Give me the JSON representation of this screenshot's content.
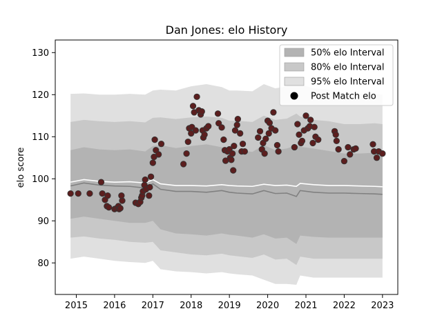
{
  "chart_data": {
    "type": "scatter",
    "title": "Dan Jones: elo History",
    "xlabel": "",
    "ylabel": "elo score",
    "xlim": [
      2014.45,
      2023.4
    ],
    "ylim": [
      72.5,
      133
    ],
    "x_ticks": [
      2015,
      2016,
      2017,
      2018,
      2019,
      2020,
      2021,
      2022,
      2023
    ],
    "x_tick_labels": [
      "2015",
      "2016",
      "2017",
      "2018",
      "2019",
      "2020",
      "2021",
      "2022",
      "2023"
    ],
    "y_ticks": [
      80,
      90,
      100,
      110,
      120,
      130
    ],
    "y_tick_labels": [
      "80",
      "90",
      "100",
      "110",
      "120",
      "130"
    ],
    "grid": false,
    "legend_position": "top-right",
    "legend": [
      {
        "label": "50% elo Interval",
        "kind": "band",
        "color": "#b3b3b3"
      },
      {
        "label": "80% elo Interval",
        "kind": "band",
        "color": "#c8c8c8"
      },
      {
        "label": "95% elo Interval",
        "kind": "band",
        "color": "#e0e0e0"
      },
      {
        "label": "Post Match elo",
        "kind": "marker",
        "color": "#000000"
      }
    ],
    "colors": {
      "band50": "#b3b3b3",
      "band80": "#c8c8c8",
      "band95": "#e0e0e0",
      "median_line": "#808080",
      "mean_line": "#ffffff",
      "point_fill": "#5c1e1e",
      "point_edge": "#333333"
    },
    "bands": {
      "x": [
        2014.85,
        2015.2,
        2015.6,
        2016.0,
        2016.4,
        2016.8,
        2017.0,
        2017.2,
        2017.6,
        2018.0,
        2018.4,
        2018.8,
        2019.0,
        2019.2,
        2019.6,
        2019.9,
        2020.2,
        2020.5,
        2020.75,
        2020.85,
        2021.2,
        2021.6,
        2022.0,
        2022.4,
        2022.8,
        2023.0
      ],
      "p95_hi": [
        120.2,
        120.3,
        120.0,
        120.0,
        120.2,
        120.0,
        121.0,
        121.2,
        121.0,
        122.0,
        122.5,
        121.8,
        121.0,
        121.0,
        120.8,
        122.5,
        121.5,
        122.0,
        124.0,
        122.5,
        121.5,
        121.2,
        120.2,
        120.2,
        120.2,
        120.0
      ],
      "p80_hi": [
        113.5,
        114.0,
        113.7,
        113.5,
        113.7,
        113.4,
        114.5,
        114.6,
        114.2,
        114.6,
        114.8,
        114.5,
        113.8,
        113.8,
        113.5,
        115.0,
        114.0,
        114.3,
        115.5,
        114.8,
        114.0,
        113.7,
        113.0,
        113.0,
        113.2,
        113.0
      ],
      "p50_hi": [
        106.8,
        107.5,
        107.0,
        106.8,
        107.0,
        106.5,
        107.8,
        108.0,
        107.3,
        107.8,
        108.2,
        107.5,
        106.8,
        106.8,
        106.4,
        108.0,
        106.8,
        107.2,
        108.0,
        107.6,
        107.2,
        106.6,
        106.0,
        106.0,
        106.2,
        106.0
      ],
      "median": [
        98.3,
        99.0,
        98.5,
        98.3,
        98.2,
        97.8,
        98.8,
        97.5,
        97.0,
        97.0,
        96.8,
        97.2,
        96.8,
        96.6,
        96.4,
        97.2,
        96.5,
        96.6,
        95.8,
        97.2,
        96.8,
        96.6,
        96.6,
        96.5,
        96.4,
        96.3
      ],
      "mean": [
        99.2,
        99.8,
        99.4,
        99.2,
        99.3,
        99.0,
        99.8,
        98.8,
        98.4,
        98.4,
        98.3,
        98.6,
        98.4,
        98.3,
        98.2,
        98.7,
        98.4,
        98.5,
        98.2,
        98.9,
        98.6,
        98.4,
        98.4,
        98.3,
        98.2,
        98.1
      ],
      "p50_lo": [
        90.5,
        91.0,
        90.5,
        90.0,
        89.5,
        89.5,
        90.0,
        88.0,
        87.0,
        86.8,
        86.5,
        87.0,
        86.7,
        86.5,
        86.0,
        86.8,
        85.8,
        86.0,
        84.5,
        86.5,
        86.2,
        86.0,
        86.0,
        86.0,
        86.0,
        86.0
      ],
      "p80_lo": [
        86.0,
        86.3,
        85.8,
        85.5,
        85.0,
        84.8,
        85.0,
        83.0,
        82.5,
        82.0,
        81.8,
        82.2,
        81.8,
        81.6,
        81.2,
        82.0,
        80.8,
        81.0,
        79.5,
        81.5,
        81.0,
        81.0,
        81.0,
        81.0,
        81.0,
        81.0
      ],
      "p95_lo": [
        81.0,
        81.5,
        81.0,
        80.5,
        80.2,
        80.0,
        80.5,
        78.5,
        78.0,
        77.8,
        77.5,
        77.8,
        77.5,
        77.3,
        77.0,
        76.0,
        75.0,
        75.0,
        74.8,
        77.0,
        76.5,
        76.5,
        76.5,
        76.5,
        76.5,
        76.5
      ]
    },
    "series": [
      {
        "name": "Post Match elo",
        "points": [
          [
            2014.85,
            96.5
          ],
          [
            2015.05,
            96.5
          ],
          [
            2015.35,
            96.5
          ],
          [
            2015.65,
            99.2
          ],
          [
            2015.68,
            96.5
          ],
          [
            2015.75,
            95.0
          ],
          [
            2015.8,
            93.5
          ],
          [
            2015.85,
            93.2
          ],
          [
            2015.82,
            96.0
          ],
          [
            2016.0,
            92.8
          ],
          [
            2016.05,
            93.0
          ],
          [
            2016.1,
            93.5
          ],
          [
            2016.12,
            92.8
          ],
          [
            2016.15,
            93.0
          ],
          [
            2016.2,
            94.8
          ],
          [
            2016.18,
            96.0
          ],
          [
            2016.55,
            94.3
          ],
          [
            2016.62,
            94.0
          ],
          [
            2016.67,
            94.5
          ],
          [
            2016.7,
            95.5
          ],
          [
            2016.72,
            96.0
          ],
          [
            2016.74,
            97.0
          ],
          [
            2016.78,
            98.5
          ],
          [
            2016.8,
            99.8
          ],
          [
            2016.82,
            97.5
          ],
          [
            2016.9,
            96.0
          ],
          [
            2016.95,
            100.5
          ],
          [
            2016.92,
            98.0
          ],
          [
            2017.0,
            103.8
          ],
          [
            2017.03,
            105.2
          ],
          [
            2017.05,
            109.3
          ],
          [
            2017.08,
            106.8
          ],
          [
            2017.15,
            105.8
          ],
          [
            2017.22,
            108.3
          ],
          [
            2017.8,
            103.5
          ],
          [
            2017.88,
            106.0
          ],
          [
            2017.92,
            108.8
          ],
          [
            2017.95,
            112.0
          ],
          [
            2018.0,
            110.8
          ],
          [
            2018.02,
            112.3
          ],
          [
            2018.05,
            117.3
          ],
          [
            2018.08,
            115.8
          ],
          [
            2018.12,
            111.5
          ],
          [
            2018.15,
            119.5
          ],
          [
            2018.2,
            116.3
          ],
          [
            2018.25,
            115.3
          ],
          [
            2018.28,
            116.0
          ],
          [
            2018.3,
            111.5
          ],
          [
            2018.32,
            109.8
          ],
          [
            2018.35,
            110.5
          ],
          [
            2018.4,
            112.0
          ],
          [
            2018.45,
            112.5
          ],
          [
            2018.7,
            115.5
          ],
          [
            2018.72,
            113.2
          ],
          [
            2018.8,
            112.2
          ],
          [
            2018.85,
            109.3
          ],
          [
            2018.88,
            106.8
          ],
          [
            2018.9,
            104.3
          ],
          [
            2018.95,
            106.5
          ],
          [
            2019.0,
            107.0
          ],
          [
            2019.02,
            105.0
          ],
          [
            2019.05,
            104.5
          ],
          [
            2019.08,
            106.0
          ],
          [
            2019.1,
            102.0
          ],
          [
            2019.12,
            107.8
          ],
          [
            2019.15,
            111.5
          ],
          [
            2019.2,
            112.8
          ],
          [
            2019.22,
            114.2
          ],
          [
            2019.28,
            110.8
          ],
          [
            2019.32,
            106.5
          ],
          [
            2019.35,
            108.3
          ],
          [
            2019.4,
            106.5
          ],
          [
            2019.75,
            109.8
          ],
          [
            2019.8,
            111.3
          ],
          [
            2019.85,
            107.0
          ],
          [
            2019.88,
            108.5
          ],
          [
            2019.92,
            106.0
          ],
          [
            2019.95,
            109.5
          ],
          [
            2020.0,
            113.8
          ],
          [
            2020.03,
            110.8
          ],
          [
            2020.05,
            113.3
          ],
          [
            2020.1,
            112.0
          ],
          [
            2020.15,
            115.8
          ],
          [
            2020.2,
            111.5
          ],
          [
            2020.25,
            108.0
          ],
          [
            2020.28,
            106.5
          ],
          [
            2020.7,
            107.5
          ],
          [
            2020.78,
            113.0
          ],
          [
            2020.82,
            110.5
          ],
          [
            2020.87,
            108.5
          ],
          [
            2020.9,
            109.0
          ],
          [
            2020.95,
            111.5
          ],
          [
            2021.0,
            115.0
          ],
          [
            2021.05,
            112.0
          ],
          [
            2021.1,
            112.5
          ],
          [
            2021.12,
            114.0
          ],
          [
            2021.18,
            108.5
          ],
          [
            2021.22,
            112.3
          ],
          [
            2021.25,
            110.0
          ],
          [
            2021.32,
            109.3
          ],
          [
            2021.75,
            111.3
          ],
          [
            2021.78,
            110.5
          ],
          [
            2021.8,
            109.0
          ],
          [
            2021.85,
            107.0
          ],
          [
            2022.0,
            104.2
          ],
          [
            2022.1,
            107.5
          ],
          [
            2022.15,
            105.8
          ],
          [
            2022.25,
            107.0
          ],
          [
            2022.3,
            107.2
          ],
          [
            2022.75,
            108.2
          ],
          [
            2022.78,
            106.5
          ],
          [
            2022.85,
            105.0
          ],
          [
            2022.9,
            106.5
          ],
          [
            2023.0,
            106.0
          ]
        ]
      }
    ]
  }
}
